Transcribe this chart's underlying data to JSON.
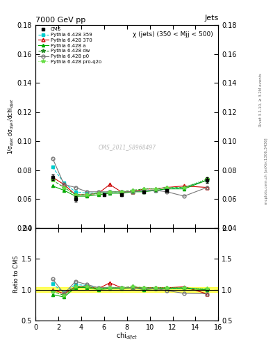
{
  "title": "7000 GeV pp",
  "title_right": "Jets",
  "annotation": "χ (jets) (350 < Mjj < 500)",
  "watermark": "CMS_2011_S8968497",
  "rivet_text": "Rivet 3.1.10, ≥ 3.2M events",
  "mcplots_text": "mcplots.cern.ch [arXiv:1306.3436]",
  "xlabel": "chi$_{dijet}$",
  "ylabel": "1/σ$_{dijet}$ dσ$_{dijet}$/dchi$_{dijet}$",
  "ylabel_ratio": "Ratio to CMS",
  "ylim_main": [
    0.04,
    0.18
  ],
  "ylim_ratio": [
    0.5,
    2.0
  ],
  "xlim": [
    0,
    16
  ],
  "yticks_main": [
    0.04,
    0.06,
    0.08,
    0.1,
    0.12,
    0.14,
    0.16,
    0.18
  ],
  "yticks_ratio": [
    0.5,
    1.0,
    1.5,
    2.0
  ],
  "cms_x": [
    1.5,
    3.5,
    6.0,
    7.5,
    9.5,
    11.5,
    15.0
  ],
  "cms_y": [
    0.075,
    0.06,
    0.063,
    0.063,
    0.065,
    0.066,
    0.073
  ],
  "cms_yerr": [
    0.002,
    0.002,
    0.001,
    0.001,
    0.001,
    0.001,
    0.002
  ],
  "p359_x": [
    1.5,
    2.5,
    3.5,
    4.5,
    5.5,
    6.5,
    7.5,
    8.5,
    9.5,
    10.5,
    11.5,
    13.0,
    15.0
  ],
  "p359_y": [
    0.082,
    0.071,
    0.065,
    0.064,
    0.064,
    0.065,
    0.065,
    0.065,
    0.066,
    0.066,
    0.067,
    0.068,
    0.073
  ],
  "p370_x": [
    1.5,
    2.5,
    3.5,
    4.5,
    5.5,
    6.5,
    7.5,
    8.5,
    9.5,
    10.5,
    11.5,
    13.0,
    15.0
  ],
  "p370_y": [
    0.075,
    0.07,
    0.063,
    0.063,
    0.064,
    0.07,
    0.065,
    0.065,
    0.067,
    0.067,
    0.068,
    0.069,
    0.068
  ],
  "pa_x": [
    1.5,
    2.5,
    3.5,
    4.5,
    5.5,
    6.5,
    7.5,
    8.5,
    9.5,
    10.5,
    11.5,
    13.0,
    15.0
  ],
  "pa_y": [
    0.069,
    0.066,
    0.062,
    0.062,
    0.063,
    0.064,
    0.064,
    0.065,
    0.065,
    0.066,
    0.067,
    0.067,
    0.073
  ],
  "pdw_x": [
    1.5,
    2.5,
    3.5,
    4.5,
    5.5,
    6.5,
    7.5,
    8.5,
    9.5,
    10.5,
    11.5,
    13.0,
    15.0
  ],
  "pdw_y": [
    0.073,
    0.068,
    0.063,
    0.063,
    0.064,
    0.065,
    0.065,
    0.066,
    0.067,
    0.067,
    0.068,
    0.068,
    0.073
  ],
  "pp0_x": [
    1.5,
    2.5,
    3.5,
    4.5,
    5.5,
    6.5,
    7.5,
    8.5,
    9.5,
    10.5,
    11.5,
    13.0,
    15.0
  ],
  "pp0_y": [
    0.088,
    0.07,
    0.068,
    0.065,
    0.065,
    0.065,
    0.065,
    0.065,
    0.066,
    0.066,
    0.065,
    0.062,
    0.068
  ],
  "pproq2o_x": [
    1.5,
    2.5,
    3.5,
    4.5,
    5.5,
    6.5,
    7.5,
    8.5,
    9.5,
    10.5,
    11.5,
    13.0,
    15.0
  ],
  "pproq2o_y": [
    0.073,
    0.068,
    0.063,
    0.063,
    0.064,
    0.065,
    0.065,
    0.066,
    0.067,
    0.067,
    0.068,
    0.068,
    0.074
  ],
  "color_cms": "black",
  "color_p359": "#00CCCC",
  "color_p370": "#CC0000",
  "color_pa": "#00AA00",
  "color_pdw": "#228B22",
  "color_pp0": "#777777",
  "color_pproq2o": "#66DD44"
}
